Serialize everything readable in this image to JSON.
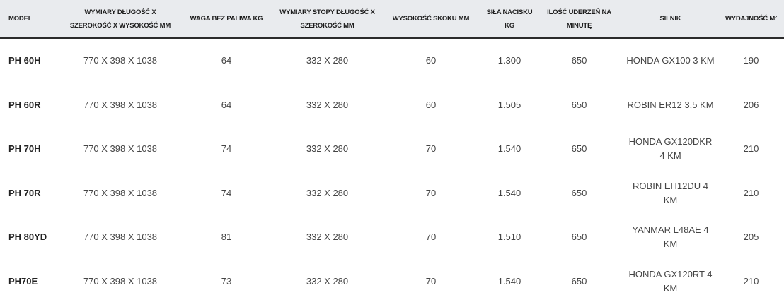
{
  "headers": [
    "MODEL",
    "WYMIARY DŁUGOŚĆ X SZEROKOŚĆ X WYSOKOŚĆ MM",
    "WAGA BEZ PALIWA KG",
    "WYMIARY STOPY DŁUGOŚĆ X SZEROKOŚĆ MM",
    "WYSOKOŚĆ SKOKU MM",
    "SIŁA NACISKU KG",
    "ILOŚĆ UDERZEŃ NA MINUTĘ",
    "SILNIK",
    "WYDAJNOŚĆ M²"
  ],
  "rows": [
    [
      "PH 60H",
      "770 X 398 X 1038",
      "64",
      "332 X 280",
      "60",
      "1.300",
      "650",
      "HONDA GX100 3 KM",
      "190"
    ],
    [
      "PH 60R",
      "770 X 398 X 1038",
      "64",
      "332 X 280",
      "60",
      "1.505",
      "650",
      "ROBIN ER12 3,5 KM",
      "206"
    ],
    [
      "PH 70H",
      "770 X 398 X 1038",
      "74",
      "332 X 280",
      "70",
      "1.540",
      "650",
      "HONDA GX120DKR 4 KM",
      "210"
    ],
    [
      "PH 70R",
      "770 X 398 X 1038",
      "74",
      "332 X 280",
      "70",
      "1.540",
      "650",
      "ROBIN EH12DU 4 KM",
      "210"
    ],
    [
      "PH 80YD",
      "770 X 398 X 1038",
      "81",
      "332 X 280",
      "70",
      "1.510",
      "650",
      "YANMAR L48AE 4 KM",
      "205"
    ],
    [
      "PH70E",
      "770 X 398 X 1038",
      "73",
      "332 X 280",
      "70",
      "1.540",
      "650",
      "HONDA GX120RT 4 KM",
      "210"
    ]
  ]
}
